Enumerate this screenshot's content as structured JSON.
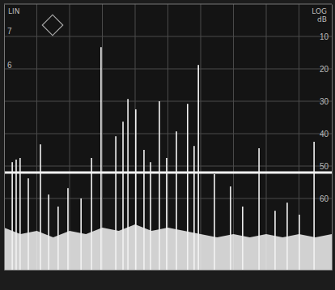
{
  "chart_data": {
    "type": "bar",
    "title": "LIN",
    "y_label": "LOG",
    "y_unit": "dB",
    "x": [
      0.25,
      0.37,
      0.49,
      0.74,
      1.11,
      1.36,
      1.65,
      1.95,
      2.35,
      2.67,
      2.96,
      3.41,
      3.63,
      3.78,
      4.02,
      4.27,
      4.47,
      4.74,
      4.96,
      5.26,
      5.6,
      5.8,
      5.93,
      6.42,
      6.91,
      7.28,
      7.78,
      8.27,
      8.64,
      9.01,
      9.46
    ],
    "values": [
      48.8,
      48,
      47.5,
      53.8,
      43.3,
      58.8,
      62.5,
      56.8,
      60,
      47.5,
      13.3,
      40.8,
      36.3,
      29.3,
      32.5,
      45,
      48.8,
      30,
      47.5,
      39.3,
      30.8,
      43.8,
      18.8,
      52.5,
      56.3,
      62.5,
      44.5,
      63.8,
      61.3,
      65,
      42.5
    ],
    "noise_floor": {
      "x": [
        0,
        0.5,
        1,
        1.5,
        2,
        2.5,
        3,
        3.5,
        4,
        4.5,
        5,
        5.5,
        6,
        6.5,
        7,
        7.5,
        8,
        8.5,
        9,
        9.5,
        10
      ],
      "values": [
        69,
        71,
        70,
        72,
        70,
        71,
        69,
        70,
        68,
        70,
        69,
        70,
        71,
        72,
        71,
        72,
        71,
        72,
        71,
        72,
        71
      ]
    },
    "reference_line": 52,
    "xlim": [
      0,
      10
    ],
    "xticks": [
      1,
      2,
      3,
      4,
      5,
      6,
      7,
      8,
      9
    ],
    "ylim": [
      0,
      82
    ],
    "yticks": [
      10,
      20,
      30,
      40,
      50,
      60
    ],
    "y2lim": [
      0,
      7.8
    ],
    "y2ticks": [
      6,
      7
    ],
    "grid": true,
    "tick_labels": "y",
    "color": "#f2f2f2"
  }
}
